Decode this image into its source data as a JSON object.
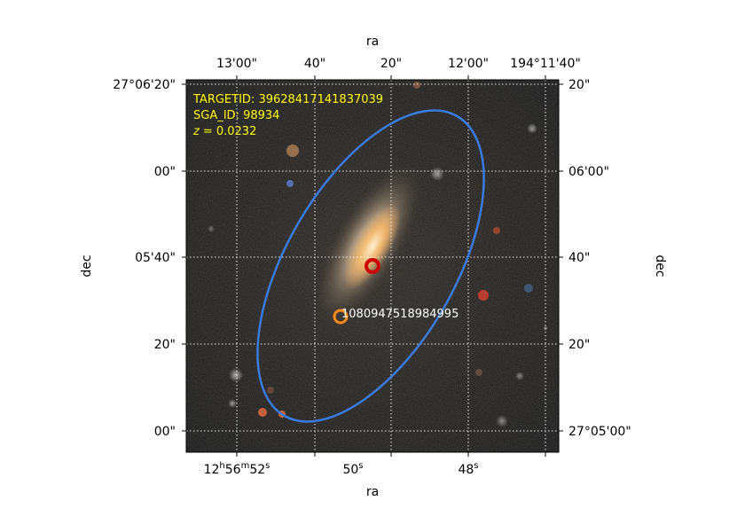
{
  "figure": {
    "annotation": {
      "lines": [
        "TARGETID: 39628417141837039",
        "SGA_ID: 98934"
      ],
      "z_symbol": "z",
      "z_value": "= 0.0232",
      "color": "#ffff00"
    },
    "axes": {
      "bottom_label": "ra",
      "top_label": "ra",
      "left_label": "dec",
      "right_label": "dec",
      "top_ticks": [
        "13'00\"",
        "40\"",
        "20\"",
        "12'00\"",
        "194°11'40\""
      ],
      "bottom_ticks": [
        {
          "h": "12",
          "m": "56",
          "s": "52",
          "unit": "s"
        },
        {
          "text": "50",
          "unit": "s"
        },
        {
          "text": "48",
          "unit": "s"
        }
      ],
      "left_ticks": [
        "27°06'20\"",
        "00\"",
        "05'40\"",
        "20\"",
        "00\""
      ],
      "right_ticks": [
        "20\"",
        "06'00\"",
        "40\"",
        "20\"",
        "27°05'00\""
      ]
    },
    "markers": {
      "target_color": "#cc0000",
      "other_color": "#ff8c1a",
      "other_label": "1080947518984995",
      "ellipse_color": "#3a7be0"
    }
  }
}
